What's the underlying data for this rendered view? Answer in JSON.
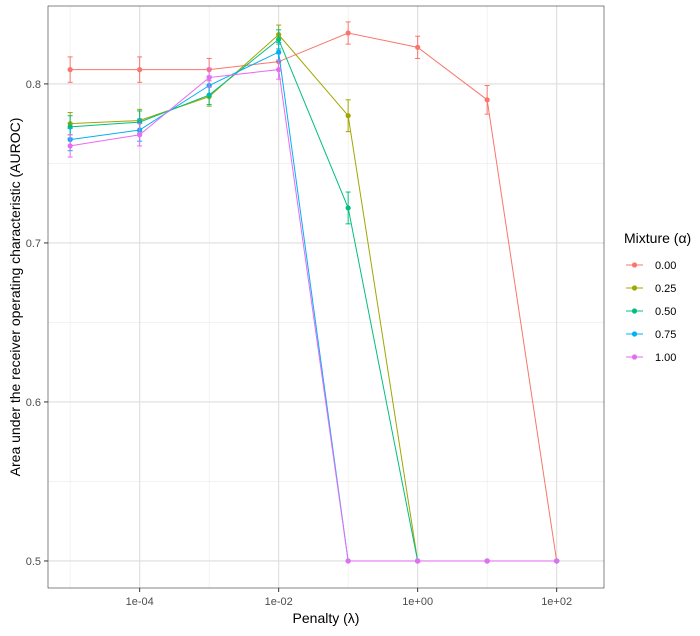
{
  "chart_data": {
    "type": "line",
    "xlabel": "Penalty (λ)",
    "ylabel": "Area under the receiver operating characteristic (AUROC)",
    "x_scale": "log10",
    "xlim": [
      4.8e-06,
      480
    ],
    "ylim": [
      0.483,
      0.849
    ],
    "x_ticks": [
      0.0001,
      0.01,
      1,
      100
    ],
    "x_tick_labels": [
      "1e-04",
      "1e-02",
      "1e+00",
      "1e+02"
    ],
    "y_ticks": [
      0.5,
      0.6,
      0.7,
      0.8
    ],
    "y_tick_labels": [
      "0.5",
      "0.6",
      "0.7",
      "0.8"
    ],
    "grid": true,
    "legend": {
      "title": "Mixture (α)",
      "position": "right"
    },
    "series": [
      {
        "name": "0.00",
        "color": "#F8766D",
        "x": [
          1e-05,
          0.0001,
          0.001,
          0.01,
          0.1,
          1,
          10,
          100
        ],
        "y": [
          0.809,
          0.809,
          0.809,
          0.814,
          0.832,
          0.823,
          0.79,
          0.5
        ],
        "err": [
          0.008,
          0.008,
          0.007,
          0.005,
          0.007,
          0.007,
          0.009,
          0.0
        ]
      },
      {
        "name": "0.25",
        "color": "#A3A500",
        "x": [
          1e-05,
          0.0001,
          0.001,
          0.01,
          0.1,
          1,
          10,
          100
        ],
        "y": [
          0.775,
          0.777,
          0.792,
          0.831,
          0.78,
          0.5,
          0.5,
          0.5
        ],
        "err": [
          0.007,
          0.007,
          0.006,
          0.006,
          0.01,
          0.0,
          0.0,
          0.0
        ]
      },
      {
        "name": "0.50",
        "color": "#00BF7D",
        "x": [
          1e-05,
          0.0001,
          0.001,
          0.01,
          0.1,
          1,
          10,
          100
        ],
        "y": [
          0.773,
          0.776,
          0.793,
          0.828,
          0.722,
          0.5,
          0.5,
          0.5
        ],
        "err": [
          0.007,
          0.007,
          0.006,
          0.006,
          0.01,
          0.0,
          0.0,
          0.0
        ]
      },
      {
        "name": "0.75",
        "color": "#00B0F6",
        "x": [
          1e-05,
          0.0001,
          0.001,
          0.01,
          0.1,
          1,
          10,
          100
        ],
        "y": [
          0.765,
          0.771,
          0.799,
          0.82,
          0.5,
          0.5,
          0.5,
          0.5
        ],
        "err": [
          0.007,
          0.007,
          0.006,
          0.006,
          0.0,
          0.0,
          0.0,
          0.0
        ]
      },
      {
        "name": "1.00",
        "color": "#E76BF3",
        "x": [
          1e-05,
          0.0001,
          0.001,
          0.01,
          0.1,
          1,
          10,
          100
        ],
        "y": [
          0.761,
          0.768,
          0.804,
          0.809,
          0.5,
          0.5,
          0.5,
          0.5
        ],
        "err": [
          0.007,
          0.007,
          0.006,
          0.006,
          0.0,
          0.0,
          0.0,
          0.0
        ]
      }
    ]
  }
}
